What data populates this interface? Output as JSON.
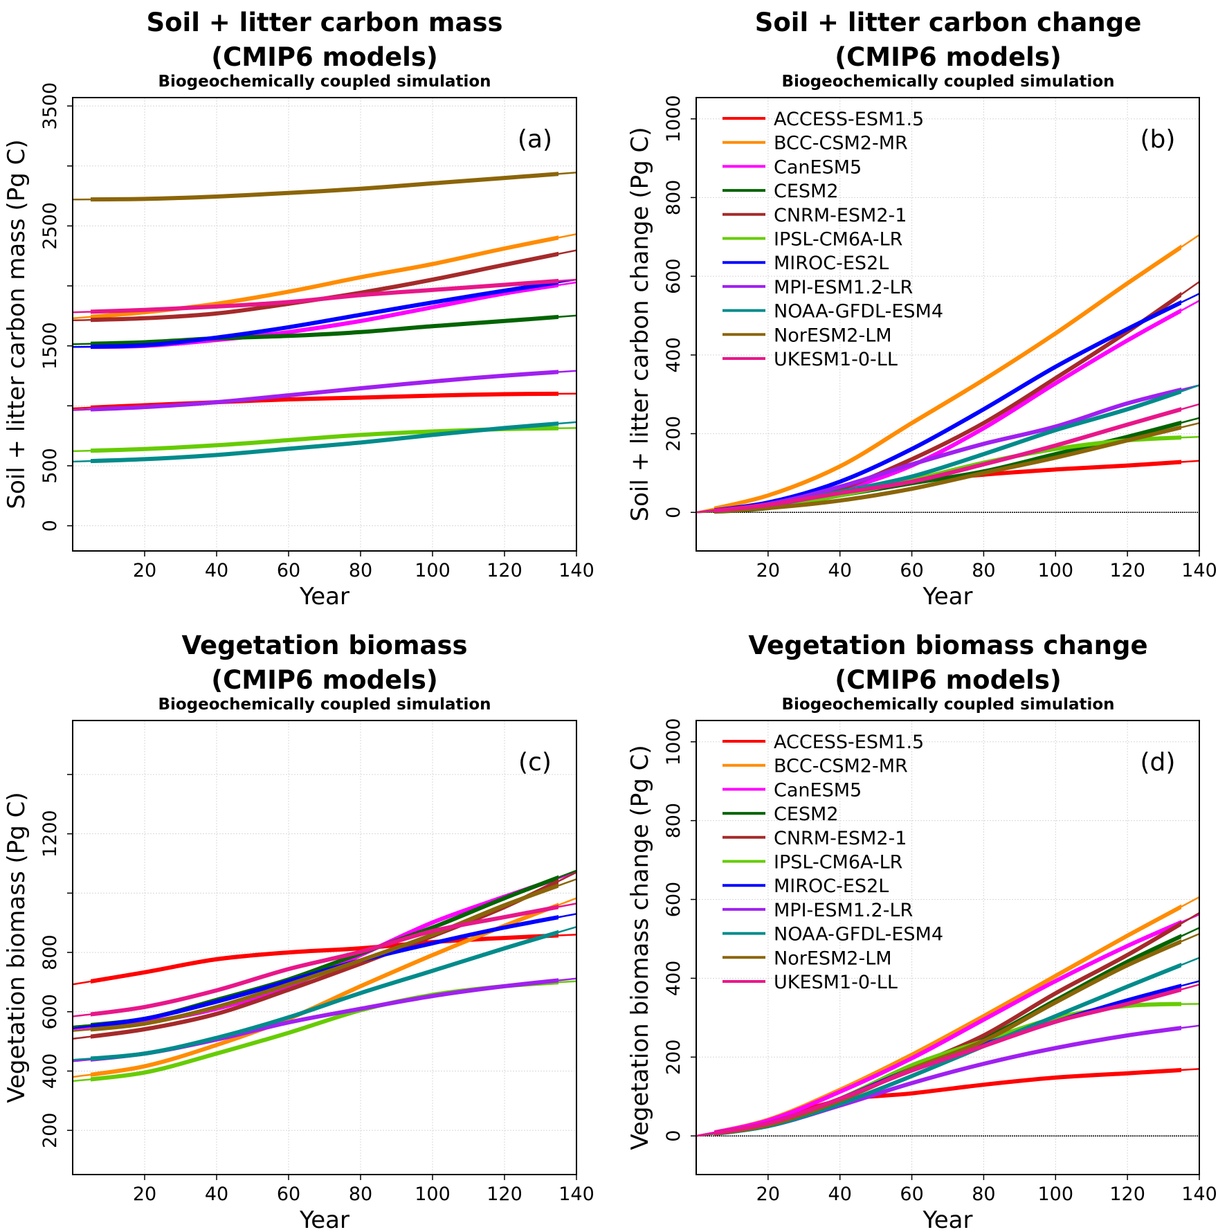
{
  "models": [
    {
      "name": "ACCESS-ESM1.5",
      "color": "#ff0000"
    },
    {
      "name": "BCC-CSM2-MR",
      "color": "#ff8c00"
    },
    {
      "name": "CanESM5",
      "color": "#ff00ff"
    },
    {
      "name": "CESM2",
      "color": "#006400"
    },
    {
      "name": "CNRM-ESM2-1",
      "color": "#a52a2a"
    },
    {
      "name": "IPSL-CM6A-LR",
      "color": "#66cc00"
    },
    {
      "name": "MIROC-ES2L",
      "color": "#0000ff"
    },
    {
      "name": "MPI-ESM1.2-LR",
      "color": "#a020f0"
    },
    {
      "name": "NOAA-GFDL-ESM4",
      "color": "#008b8b"
    },
    {
      "name": "NorESM2-LM",
      "color": "#8b6508"
    },
    {
      "name": "UKESM1-0-LL",
      "color": "#e8178a"
    }
  ],
  "chart_data": [
    {
      "type": "line",
      "title_line1": "Soil + litter carbon mass",
      "title_line2": "(CMIP6 models)",
      "subtitle": "Biogeochemically coupled simulation",
      "panel_label": "(a)",
      "xlabel": "Year",
      "ylabel": "Soil + litter carbon mass (Pg C)",
      "xlim": [
        0,
        140
      ],
      "ylim": [
        -210,
        3570
      ],
      "xticks": [
        20,
        40,
        60,
        80,
        100,
        120,
        140
      ],
      "xtick_labels": [
        "20",
        "40",
        "60",
        "80",
        "100",
        "120",
        "140"
      ],
      "yticks": [
        0,
        500,
        1000,
        1500,
        2000,
        2500,
        3000,
        3500
      ],
      "ytick_labels": [
        "0",
        "500",
        "",
        "1500",
        "",
        "2500",
        "",
        "3500"
      ],
      "grid": true,
      "legend": false,
      "zero_line": false,
      "x": [
        0,
        20,
        40,
        60,
        80,
        100,
        120,
        140
      ],
      "series": [
        {
          "model": 0,
          "values": [
            979,
            1005,
            1030,
            1054,
            1068,
            1085,
            1097,
            1102
          ]
        },
        {
          "model": 1,
          "values": [
            1730,
            1780,
            1851,
            1952,
            2072,
            2182,
            2312,
            2432
          ]
        },
        {
          "model": 2,
          "values": [
            1491,
            1500,
            1549,
            1615,
            1707,
            1822,
            1937,
            2029
          ]
        },
        {
          "model": 3,
          "values": [
            1514,
            1530,
            1563,
            1583,
            1615,
            1664,
            1707,
            1753
          ]
        },
        {
          "model": 4,
          "values": [
            1713,
            1730,
            1770,
            1851,
            1943,
            2052,
            2176,
            2297
          ]
        },
        {
          "model": 5,
          "values": [
            622,
            640,
            671,
            714,
            757,
            786,
            806,
            815
          ]
        },
        {
          "model": 6,
          "values": [
            1491,
            1505,
            1569,
            1655,
            1759,
            1862,
            1960,
            2052
          ]
        },
        {
          "model": 7,
          "values": [
            964,
            990,
            1030,
            1088,
            1146,
            1203,
            1252,
            1292
          ]
        },
        {
          "model": 8,
          "values": [
            535,
            555,
            590,
            642,
            694,
            757,
            815,
            864
          ]
        },
        {
          "model": 9,
          "values": [
            2720,
            2725,
            2745,
            2775,
            2810,
            2855,
            2900,
            2945
          ]
        },
        {
          "model": 10,
          "values": [
            1779,
            1800,
            1828,
            1865,
            1923,
            1966,
            2009,
            2052
          ]
        }
      ]
    },
    {
      "type": "line",
      "title_line1": "Soil + litter carbon change",
      "title_line2": "(CMIP6 models)",
      "subtitle": "Biogeochemically coupled simulation",
      "panel_label": "(b)",
      "xlabel": "Year",
      "ylabel": "Soil + litter carbon change (Pg C)",
      "xlim": [
        0,
        140
      ],
      "ylim": [
        -98,
        1054
      ],
      "xticks": [
        20,
        40,
        60,
        80,
        100,
        120,
        140
      ],
      "xtick_labels": [
        "20",
        "40",
        "60",
        "80",
        "100",
        "120",
        "140"
      ],
      "yticks": [
        0,
        200,
        400,
        600,
        800,
        1000
      ],
      "ytick_labels": [
        "0",
        "200",
        "400",
        "600",
        "800",
        "1000"
      ],
      "grid": true,
      "legend": "top-left",
      "zero_line": true,
      "x": [
        0,
        20,
        40,
        60,
        80,
        100,
        120,
        140
      ],
      "series": [
        {
          "model": 0,
          "values": [
            0,
            19,
            56,
            78,
            96,
            109,
            119,
            131
          ]
        },
        {
          "model": 1,
          "values": [
            0,
            43,
            117,
            227,
            337,
            455,
            582,
            705
          ]
        },
        {
          "model": 2,
          "values": [
            0,
            19,
            56,
            119,
            214,
            328,
            437,
            538
          ]
        },
        {
          "model": 3,
          "values": [
            0,
            11,
            43,
            74,
            104,
            148,
            192,
            240
          ]
        },
        {
          "model": 4,
          "values": [
            0,
            19,
            60,
            135,
            227,
            341,
            459,
            586
          ]
        },
        {
          "model": 5,
          "values": [
            0,
            14,
            43,
            82,
            126,
            161,
            183,
            192
          ]
        },
        {
          "model": 6,
          "values": [
            0,
            25,
            78,
            161,
            262,
            370,
            466,
            556
          ]
        },
        {
          "model": 7,
          "values": [
            0,
            21,
            65,
            122,
            174,
            218,
            277,
            323
          ]
        },
        {
          "model": 8,
          "values": [
            0,
            17,
            52,
            91,
            148,
            209,
            262,
            323
          ]
        },
        {
          "model": 9,
          "values": [
            0,
            11,
            30,
            60,
            100,
            139,
            183,
            227
          ]
        },
        {
          "model": 10,
          "values": [
            0,
            19,
            49,
            78,
            122,
            170,
            223,
            275
          ]
        }
      ]
    },
    {
      "type": "line",
      "title_line1": "Vegetation biomass",
      "title_line2": "(CMIP6 models)",
      "subtitle": "Biogeochemically coupled simulation",
      "panel_label": "(c)",
      "xlabel": "Year",
      "ylabel": "Vegetation biomass (Pg C)",
      "xlim": [
        0,
        140
      ],
      "ylim": [
        51,
        1582
      ],
      "xticks": [
        20,
        40,
        60,
        80,
        100,
        120,
        140
      ],
      "xtick_labels": [
        "20",
        "40",
        "60",
        "80",
        "100",
        "120",
        "140"
      ],
      "yticks": [
        200,
        400,
        600,
        800,
        1000,
        1200,
        1400
      ],
      "ytick_labels": [
        "200",
        "400",
        "600",
        "800",
        "",
        "1200",
        ""
      ],
      "grid": true,
      "legend": false,
      "zero_line": false,
      "x": [
        0,
        20,
        40,
        60,
        80,
        100,
        120,
        140
      ],
      "series": [
        {
          "model": 0,
          "values": [
            692,
            733,
            777,
            800,
            814,
            835,
            849,
            860
          ]
        },
        {
          "model": 1,
          "values": [
            380,
            416,
            488,
            576,
            686,
            791,
            890,
            983
          ]
        },
        {
          "model": 2,
          "values": [
            541,
            564,
            610,
            686,
            791,
            901,
            988,
            1070
          ]
        },
        {
          "model": 3,
          "values": [
            550,
            576,
            640,
            709,
            797,
            884,
            983,
            1076
          ]
        },
        {
          "model": 4,
          "values": [
            509,
            541,
            593,
            674,
            762,
            855,
            953,
            1070
          ]
        },
        {
          "model": 5,
          "values": [
            366,
            395,
            459,
            529,
            605,
            657,
            686,
            703
          ]
        },
        {
          "model": 6,
          "values": [
            544,
            576,
            634,
            703,
            773,
            831,
            884,
            930
          ]
        },
        {
          "model": 7,
          "values": [
            433,
            459,
            506,
            564,
            610,
            653,
            686,
            712
          ]
        },
        {
          "model": 8,
          "values": [
            438,
            459,
            512,
            581,
            663,
            738,
            814,
            886
          ]
        },
        {
          "model": 9,
          "values": [
            535,
            560,
            616,
            692,
            773,
            860,
            959,
            1047
          ]
        },
        {
          "model": 10,
          "values": [
            584,
            616,
            672,
            744,
            802,
            872,
            919,
            965
          ]
        }
      ]
    },
    {
      "type": "line",
      "title_line1": "Vegetation biomass change",
      "title_line2": "(CMIP6 models)",
      "subtitle": "Biogeochemically coupled simulation",
      "panel_label": "(d)",
      "xlabel": "Year",
      "ylabel": "Vegetation biomass change (Pg C)",
      "xlim": [
        0,
        140
      ],
      "ylim": [
        -98,
        1054
      ],
      "xticks": [
        20,
        40,
        60,
        80,
        100,
        120,
        140
      ],
      "xtick_labels": [
        "20",
        "40",
        "60",
        "80",
        "100",
        "120",
        "140"
      ],
      "yticks": [
        0,
        200,
        400,
        600,
        800,
        1000
      ],
      "ytick_labels": [
        "0",
        "200",
        "400",
        "600",
        "800",
        "1000"
      ],
      "grid": true,
      "legend": "top-left",
      "zero_line": true,
      "x": [
        0,
        20,
        40,
        60,
        80,
        100,
        120,
        140
      ],
      "series": [
        {
          "model": 0,
          "values": [
            0,
            37,
            90,
            108,
            130,
            148,
            159,
            170
          ]
        },
        {
          "model": 1,
          "values": [
            0,
            41,
            117,
            206,
            304,
            406,
            508,
            606
          ]
        },
        {
          "model": 2,
          "values": [
            0,
            39,
            112,
            197,
            295,
            393,
            482,
            562
          ]
        },
        {
          "model": 3,
          "values": [
            0,
            28,
            94,
            179,
            246,
            344,
            442,
            528
          ]
        },
        {
          "model": 4,
          "values": [
            0,
            28,
            94,
            175,
            255,
            362,
            459,
            566
          ]
        },
        {
          "model": 5,
          "values": [
            0,
            28,
            94,
            179,
            241,
            299,
            330,
            335
          ]
        },
        {
          "model": 6,
          "values": [
            0,
            32,
            94,
            170,
            232,
            290,
            344,
            393
          ]
        },
        {
          "model": 7,
          "values": [
            0,
            25,
            77,
            134,
            183,
            223,
            255,
            280
          ]
        },
        {
          "model": 8,
          "values": [
            0,
            25,
            81,
            152,
            228,
            304,
            379,
            452
          ]
        },
        {
          "model": 9,
          "values": [
            0,
            28,
            90,
            170,
            241,
            339,
            433,
            513
          ]
        },
        {
          "model": 10,
          "values": [
            0,
            32,
            94,
            166,
            228,
            290,
            335,
            384
          ]
        }
      ]
    }
  ]
}
